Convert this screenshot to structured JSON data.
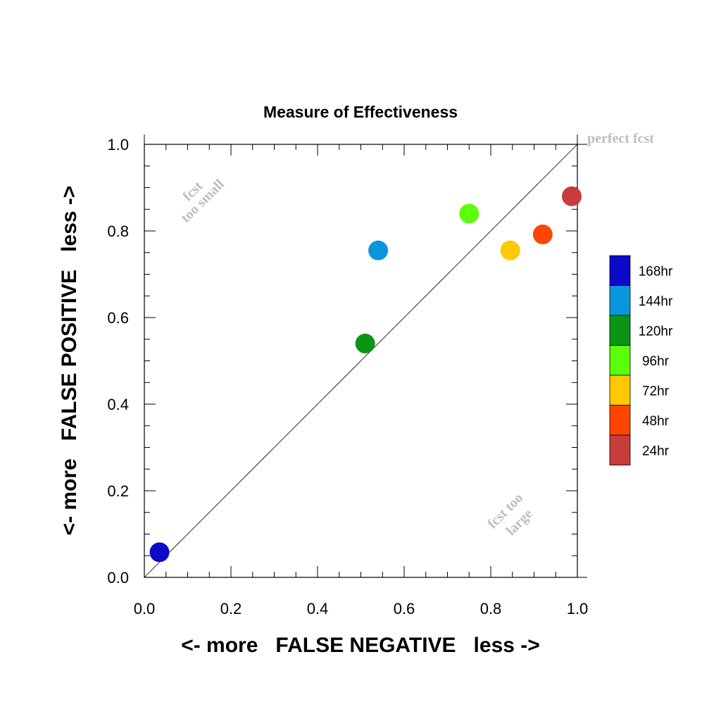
{
  "chart_data": {
    "type": "scatter",
    "title": "Measure of Effectiveness",
    "xlabel": "<- more   FALSE NEGATIVE   less ->",
    "ylabel": "<- more   FALSE POSITIVE   less ->",
    "xlim": [
      0,
      1
    ],
    "ylim": [
      0,
      1
    ],
    "x_ticks": [
      "0.0",
      "0.2",
      "0.4",
      "0.6",
      "0.8",
      "1.0"
    ],
    "y_ticks": [
      "0.0",
      "0.2",
      "0.4",
      "0.6",
      "0.8",
      "1.0"
    ],
    "grid": false,
    "reference_line": "diagonal y = x",
    "legend_position": "right",
    "series": [
      {
        "name": "168hr",
        "color": "#0a0ac8",
        "x": 0.035,
        "y": 0.058
      },
      {
        "name": "144hr",
        "color": "#0a96dc",
        "x": 0.54,
        "y": 0.755
      },
      {
        "name": "120hr",
        "color": "#0a9614",
        "x": 0.51,
        "y": 0.54
      },
      {
        "name": "96hr",
        "color": "#5aff0a",
        "x": 0.75,
        "y": 0.84
      },
      {
        "name": "72hr",
        "color": "#ffc800",
        "x": 0.845,
        "y": 0.755
      },
      {
        "name": "48hr",
        "color": "#ff4600",
        "x": 0.92,
        "y": 0.792
      },
      {
        "name": "24hr",
        "color": "#c83c3c",
        "x": 0.987,
        "y": 0.88
      }
    ],
    "annotations": {
      "top_left": [
        "fcst",
        "too small"
      ],
      "bottom_right": [
        "fcst too",
        "large"
      ],
      "top_right": "perfect fcst"
    }
  }
}
